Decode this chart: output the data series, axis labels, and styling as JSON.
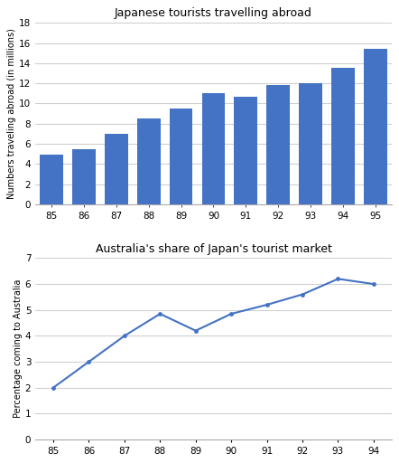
{
  "bar_years": [
    "85",
    "86",
    "87",
    "88",
    "89",
    "90",
    "91",
    "92",
    "93",
    "94",
    "95"
  ],
  "bar_values": [
    4.9,
    5.5,
    7.0,
    8.5,
    9.5,
    11.0,
    10.7,
    11.8,
    12.0,
    13.5,
    15.4
  ],
  "bar_color": "#4472C4",
  "bar_title": "Japanese tourists travelling abroad",
  "bar_ylabel": "Numbers traveling abroad (in millions)",
  "bar_ylim": [
    0,
    18
  ],
  "bar_yticks": [
    0,
    2,
    4,
    6,
    8,
    10,
    12,
    14,
    16,
    18
  ],
  "line_years": [
    "85",
    "86",
    "87",
    "88",
    "89",
    "90",
    "91",
    "92",
    "93",
    "94"
  ],
  "line_values": [
    2.0,
    3.0,
    4.0,
    4.85,
    4.2,
    4.85,
    5.2,
    5.6,
    6.2,
    6.0
  ],
  "line_color": "#4472C4",
  "line_title": "Australia's share of Japan's tourist market",
  "line_ylabel": "Percentage coming to Australia",
  "line_ylim": [
    0,
    7
  ],
  "line_yticks": [
    0,
    1,
    2,
    3,
    4,
    5,
    6,
    7
  ],
  "bg_color": "#FFFFFF",
  "plot_bg_color": "#FFFFFF",
  "grid_color": "#D0D0D0"
}
